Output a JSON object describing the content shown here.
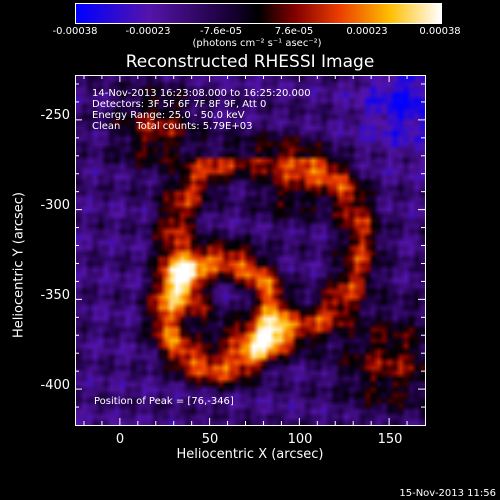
{
  "chart_data": {
    "type": "heatmap",
    "title": "Reconstructed RHESSI Image",
    "xlabel": "Heliocentric X (arcsec)",
    "ylabel": "Heliocentric Y (arcsec)",
    "xlim": [
      -25,
      170
    ],
    "ylim": [
      -420,
      -225
    ],
    "x_ticks": [
      "0",
      "50",
      "100",
      "150"
    ],
    "y_ticks": [
      "-250",
      "-300",
      "-350",
      "-400"
    ],
    "colorbar": {
      "min": -0.00038,
      "max": 0.00038,
      "tick_labels": [
        "-0.00038",
        "-0.00023",
        "-7.6e-05",
        "7.6e-05",
        "0.00023",
        "0.00038"
      ],
      "units": "(photons cm⁻² s⁻¹ asec⁻²)"
    },
    "info_lines": [
      "14-Nov-2013 16:23:08.000 to 16:25:20.000",
      "Detectors: 3F 5F 6F 7F 8F 9F, Att 0",
      "Energy Range: 25.0 - 50.0 keV",
      "Clean     Total counts: 5.79E+03"
    ],
    "peak_label": "Position of Peak = [76,-346]",
    "peak_position": [
      76,
      -346
    ]
  },
  "footer": {
    "timestamp": "15-Nov-2013 11:56"
  }
}
